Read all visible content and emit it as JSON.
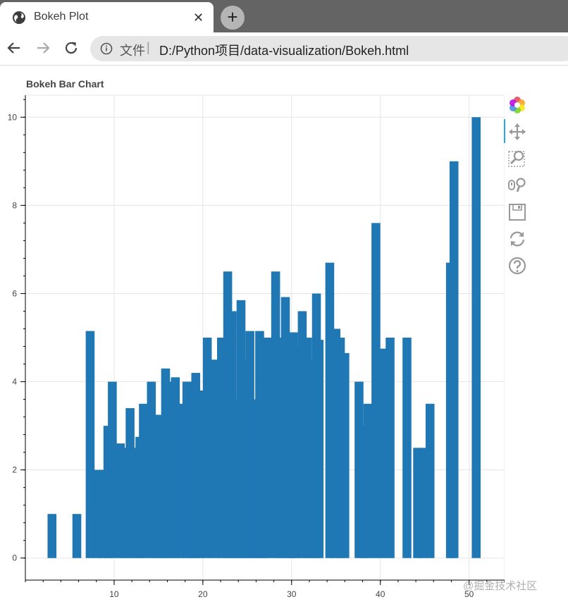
{
  "browser": {
    "tab_title": "Bokeh Plot",
    "close_glyph": "✕",
    "new_tab_glyph": "+",
    "address_scheme": "文件",
    "address_separator": "|",
    "address_url": "D:/Python项目/data-visualization/Bokeh.html"
  },
  "toolbar_icons": [
    "back-icon",
    "forward-icon",
    "reload-icon",
    "info-icon"
  ],
  "bokeh_tools": [
    "bokeh-logo-icon",
    "pan-icon",
    "box-zoom-icon",
    "wheel-zoom-icon",
    "save-icon",
    "reset-icon",
    "help-icon"
  ],
  "watermark": "@掘金技术社区",
  "colors": {
    "bar": "#1f77b4",
    "grid": "#e5e5e5",
    "axis": "#000000",
    "tab_strip": "#646464"
  },
  "chart_data": {
    "type": "bar",
    "title": "Bokeh Bar Chart",
    "xlabel": "",
    "ylabel": "",
    "xlim": [
      0,
      54
    ],
    "ylim": [
      -0.5,
      10.5
    ],
    "x_ticks": [
      "10",
      "20",
      "30",
      "40",
      "50"
    ],
    "y_ticks": [
      "0",
      "2",
      "4",
      "6",
      "8",
      "10"
    ],
    "bar_width": 1.0,
    "grid": true,
    "x": [
      3,
      5.8,
      7.3,
      8.1,
      8.7,
      9.3,
      9.8,
      10.7,
      11.2,
      11.8,
      12.4,
      12.9,
      13.3,
      14.2,
      14.8,
      15.3,
      15.8,
      16.3,
      16.9,
      17.5,
      18.2,
      18.8,
      19.2,
      19.7,
      20.5,
      21.3,
      22.1,
      22.8,
      23.3,
      23.8,
      24.3,
      24.8,
      25.3,
      25.9,
      26.4,
      26.8,
      27.3,
      28.2,
      28.8,
      29.3,
      29.8,
      30.2,
      30.5,
      31.2,
      31.8,
      32.3,
      32.8,
      33.1,
      34.3,
      35,
      35.5,
      36,
      37.6,
      38.1,
      38.6,
      39.5,
      40.2,
      41.1,
      43,
      44.2,
      44.8,
      45.6,
      47.9,
      48.3,
      50.8
    ],
    "y": [
      1,
      1,
      5.15,
      2,
      2,
      3,
      4,
      2.6,
      2.5,
      3.4,
      2.5,
      2.75,
      3.5,
      4,
      3.25,
      3.2,
      4.3,
      4,
      4.1,
      3.5,
      4,
      4,
      4.2,
      3.8,
      5,
      4.5,
      5,
      6.5,
      5.6,
      3.6,
      5.85,
      4.5,
      5.15,
      3.6,
      5.15,
      3.4,
      5,
      6.5,
      5,
      5.92,
      5,
      5.12,
      4.8,
      5.6,
      5,
      4.5,
      6,
      4.95,
      6.7,
      5.2,
      5,
      4.65,
      4,
      3,
      3.5,
      7.6,
      4.75,
      5,
      5,
      2.5,
      2.5,
      3.5,
      6.7,
      9,
      10
    ]
  }
}
